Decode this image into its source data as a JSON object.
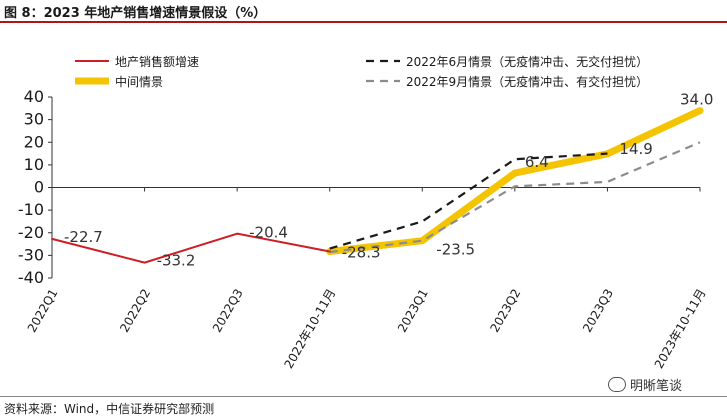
{
  "figure": {
    "title": "图 8：2023 年地产销售增速情景假设（%）",
    "source": "资料来源：Wind，中信证券研究部预测",
    "watermark": "明晰笔谈",
    "watermark_icon": "wechat-icon"
  },
  "chart_data": {
    "type": "line",
    "categories": [
      "2022Q1",
      "2022Q2",
      "2022Q3",
      "2022年10-11月",
      "2023Q1",
      "2023Q2",
      "2023Q3",
      "2023年10-11月"
    ],
    "ylim": [
      -40,
      40
    ],
    "yticks": [
      -40,
      -30,
      -20,
      -10,
      0,
      10,
      20,
      30,
      40
    ],
    "grid": false,
    "legend_position": "top",
    "series": [
      {
        "name": "地产销售额增速",
        "color": "#cc1f25",
        "style": "solid",
        "values": [
          -22.7,
          -33.2,
          -20.4,
          -28.3,
          null,
          null,
          null,
          null
        ]
      },
      {
        "name": "中间情景",
        "color": "#f5c400",
        "style": "solid-thick",
        "values": [
          null,
          null,
          null,
          -28.3,
          -23.5,
          6.4,
          14.9,
          34.0
        ]
      },
      {
        "name": "2022年6月情景（无疫情冲击、无交付担忧）",
        "color": "#1a1a1a",
        "style": "dashed",
        "values": [
          null,
          null,
          null,
          -27.0,
          -15.0,
          12.5,
          15.0,
          null
        ]
      },
      {
        "name": "2022年9月情景（无疫情冲击、有交付担忧）",
        "color": "#8c8c8c",
        "style": "dashed",
        "values": [
          null,
          null,
          null,
          -28.5,
          -23.5,
          0.5,
          2.5,
          20.0
        ]
      }
    ],
    "data_labels": [
      {
        "text": "-22.7",
        "category": "2022Q1",
        "value": -22.7
      },
      {
        "text": "-33.2",
        "category": "2022Q2",
        "value": -33.2
      },
      {
        "text": "-20.4",
        "category": "2022Q3",
        "value": -20.4
      },
      {
        "text": "-28.3",
        "category": "2022年10-11月",
        "value": -28.3
      },
      {
        "text": "-23.5",
        "category": "2023Q1",
        "value": -23.5
      },
      {
        "text": "6.4",
        "category": "2023Q2",
        "value": 6.4
      },
      {
        "text": "14.9",
        "category": "2023Q3",
        "value": 14.9
      },
      {
        "text": "34.0",
        "category": "2023年10-11月",
        "value": 34.0
      }
    ]
  }
}
